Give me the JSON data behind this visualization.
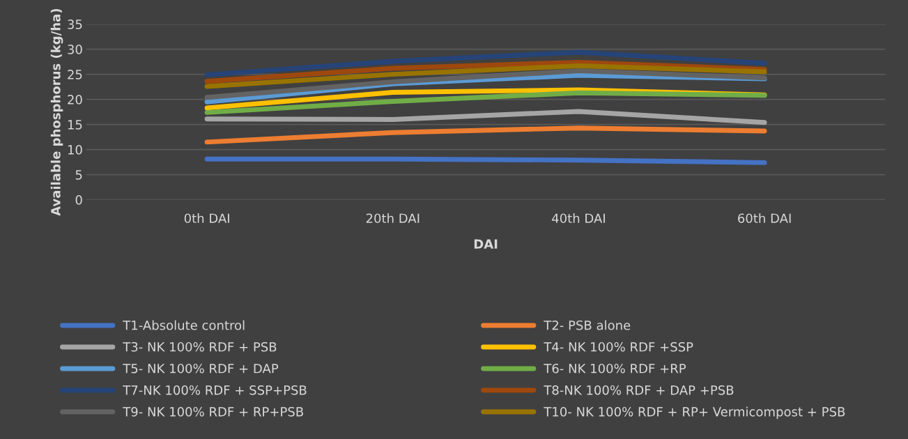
{
  "chart_data": {
    "type": "line",
    "xlabel": "DAI",
    "ylabel": "Available phosphorus (kg/ha)",
    "categories": [
      "0th DAI",
      "20th DAI",
      "40th DAI",
      "60th DAI"
    ],
    "ylim": [
      0,
      35
    ],
    "yticks": [
      0,
      5,
      10,
      15,
      20,
      25,
      30,
      35
    ],
    "grid": "y",
    "legend": "bottom",
    "marker": "none",
    "line_style": "solid",
    "series": [
      {
        "name": "T1-Absolute control",
        "color": "#4472c4",
        "values": [
          8.1,
          8.1,
          7.9,
          7.4
        ]
      },
      {
        "name": "T2- PSB alone",
        "color": "#ed7d31",
        "values": [
          11.5,
          13.4,
          14.3,
          13.7
        ]
      },
      {
        "name": "T3- NK 100% RDF + PSB",
        "color": "#a5a5a5",
        "values": [
          16.1,
          16.0,
          17.6,
          15.4
        ]
      },
      {
        "name": "T4- NK 100% RDF +SSP",
        "color": "#ffc000",
        "values": [
          18.3,
          21.4,
          21.9,
          20.9
        ]
      },
      {
        "name": "T5- NK 100% RDF + DAP",
        "color": "#5b9bd5",
        "values": [
          19.5,
          23.1,
          24.8,
          24.1
        ]
      },
      {
        "name": "T6- NK 100% RDF +RP",
        "color": "#70ad47",
        "values": [
          17.4,
          19.6,
          21.3,
          20.8
        ]
      },
      {
        "name": "T7-NK 100% RDF + SSP+PSB",
        "color": "#264478",
        "values": [
          24.9,
          27.6,
          29.4,
          27.2
        ]
      },
      {
        "name": "T8-NK 100% RDF + DAP +PSB",
        "color": "#9e480e",
        "values": [
          23.6,
          26.2,
          27.4,
          26.0
        ]
      },
      {
        "name": "T9- NK 100% RDF + RP+PSB",
        "color": "#636363",
        "values": [
          20.4,
          23.5,
          25.7,
          24.3
        ]
      },
      {
        "name": "T10- NK 100% RDF + RP+ Vermicompost + PSB",
        "color": "#997300",
        "values": [
          22.6,
          25.0,
          26.7,
          25.5
        ]
      }
    ]
  }
}
